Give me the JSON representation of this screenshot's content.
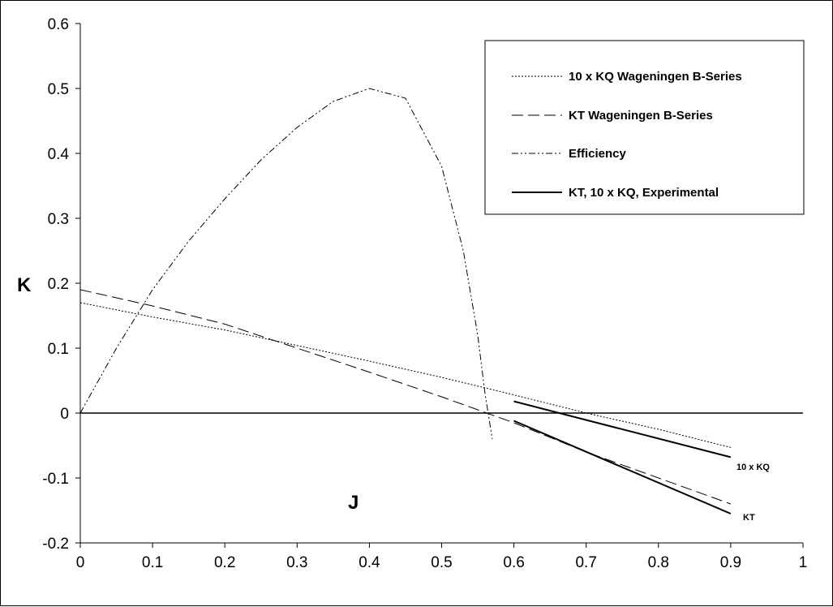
{
  "chart_data": {
    "type": "line",
    "xlabel": "J",
    "ylabel": "K",
    "xlim": [
      0,
      1
    ],
    "ylim": [
      -0.2,
      0.6
    ],
    "x_ticks": [
      "0",
      "0.1",
      "0.2",
      "0.3",
      "0.4",
      "0.5",
      "0.6",
      "0.7",
      "0.8",
      "0.9",
      "1"
    ],
    "y_ticks": [
      "-0.2",
      "-0.1",
      "0",
      "0.1",
      "0.2",
      "0.3",
      "0.4",
      "0.5",
      "0.6"
    ],
    "grid": false,
    "legend_position": "top-right",
    "series": [
      {
        "name": "10 x KQ Wageningen B-Series",
        "style": "dotted",
        "x": [
          0,
          0.1,
          0.2,
          0.3,
          0.4,
          0.5,
          0.6,
          0.7,
          0.8,
          0.9
        ],
        "y": [
          0.17,
          0.148,
          0.128,
          0.104,
          0.08,
          0.055,
          0.028,
          0.0,
          -0.025,
          -0.053
        ]
      },
      {
        "name": "KT Wageningen B-Series",
        "style": "dashed",
        "x": [
          0,
          0.1,
          0.2,
          0.3,
          0.4,
          0.5,
          0.6,
          0.7,
          0.8,
          0.9
        ],
        "y": [
          0.19,
          0.165,
          0.137,
          0.1,
          0.063,
          0.025,
          -0.015,
          -0.06,
          -0.1,
          -0.14
        ]
      },
      {
        "name": "Efficiency",
        "style": "dash-dot-dot",
        "x": [
          0,
          0.05,
          0.1,
          0.15,
          0.2,
          0.25,
          0.3,
          0.35,
          0.4,
          0.45,
          0.5,
          0.53,
          0.55,
          0.56,
          0.57
        ],
        "y": [
          0.0,
          0.1,
          0.19,
          0.265,
          0.33,
          0.39,
          0.44,
          0.48,
          0.5,
          0.485,
          0.38,
          0.25,
          0.12,
          0.03,
          -0.04
        ]
      },
      {
        "name": "KT, 10 x KQ, Experimental",
        "style": "solid",
        "lines": [
          {
            "label": "10 x KQ",
            "x": [
              0.6,
              0.9
            ],
            "y": [
              0.018,
              -0.068
            ]
          },
          {
            "label": "KT",
            "x": [
              0.6,
              0.9
            ],
            "y": [
              -0.012,
              -0.155
            ]
          }
        ]
      }
    ],
    "annotations": [
      "10 x KQ",
      "KT"
    ]
  }
}
